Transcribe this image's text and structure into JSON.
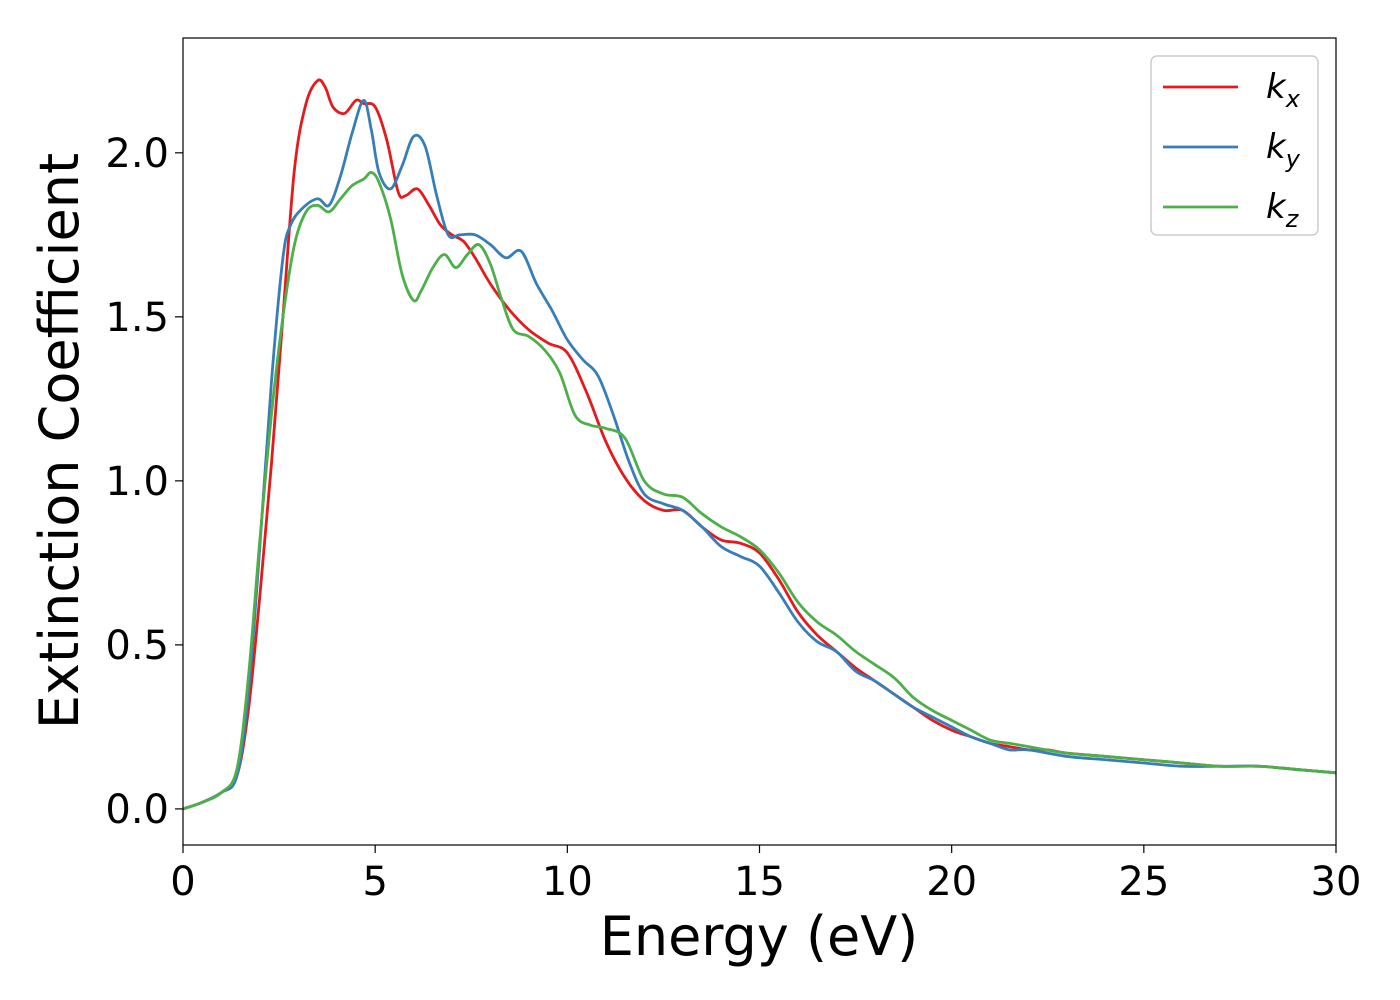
{
  "chart_data": {
    "type": "line",
    "title": "",
    "xlabel": "Energy (eV)",
    "ylabel": "Extinction Coefficient",
    "xlim": [
      0,
      30
    ],
    "ylim": [
      -0.11,
      2.35
    ],
    "xticks": [
      0,
      5,
      10,
      15,
      20,
      25,
      30
    ],
    "xtick_labels": [
      "0",
      "5",
      "10",
      "15",
      "20",
      "25",
      "30"
    ],
    "yticks": [
      0.0,
      0.5,
      1.0,
      1.5,
      2.0
    ],
    "ytick_labels": [
      "0.0",
      "0.5",
      "1.0",
      "1.5",
      "2.0"
    ],
    "grid": false,
    "legend_position": "top-right",
    "series": [
      {
        "name": "k_x",
        "label_main": "k",
        "label_sub": "x",
        "color": "#e41a1c",
        "x": [
          0,
          0.5,
          1.0,
          1.4,
          1.7,
          2.0,
          2.3,
          2.6,
          2.9,
          3.2,
          3.5,
          3.7,
          3.9,
          4.2,
          4.5,
          4.7,
          5.0,
          5.3,
          5.6,
          5.8,
          6.1,
          6.4,
          6.7,
          7.0,
          7.3,
          7.6,
          8.0,
          8.5,
          9.0,
          9.5,
          10.0,
          10.5,
          11.0,
          11.5,
          12.0,
          12.5,
          13.0,
          13.5,
          14.0,
          14.5,
          15.0,
          15.5,
          16.0,
          16.5,
          17.0,
          17.5,
          18.0,
          18.5,
          19.0,
          19.5,
          20.0,
          20.5,
          21.0,
          21.5,
          22.0,
          22.5,
          23.0,
          24.0,
          25.0,
          26.0,
          27.0,
          28.0,
          29.0,
          30.0
        ],
        "y": [
          0.0,
          0.02,
          0.05,
          0.1,
          0.3,
          0.65,
          1.05,
          1.5,
          1.95,
          2.15,
          2.22,
          2.2,
          2.14,
          2.12,
          2.16,
          2.15,
          2.14,
          2.04,
          1.88,
          1.87,
          1.89,
          1.84,
          1.78,
          1.75,
          1.73,
          1.68,
          1.6,
          1.52,
          1.46,
          1.42,
          1.39,
          1.27,
          1.12,
          1.01,
          0.94,
          0.91,
          0.91,
          0.86,
          0.82,
          0.81,
          0.78,
          0.7,
          0.6,
          0.53,
          0.48,
          0.43,
          0.39,
          0.35,
          0.31,
          0.27,
          0.24,
          0.22,
          0.2,
          0.19,
          0.18,
          0.18,
          0.17,
          0.16,
          0.15,
          0.14,
          0.13,
          0.13,
          0.12,
          0.11
        ]
      },
      {
        "name": "k_y",
        "label_main": "k",
        "label_sub": "y",
        "color": "#377eb8",
        "x": [
          0,
          0.5,
          1.0,
          1.4,
          1.7,
          2.0,
          2.3,
          2.6,
          2.8,
          3.1,
          3.5,
          3.8,
          4.1,
          4.4,
          4.7,
          4.9,
          5.1,
          5.4,
          5.7,
          6.0,
          6.3,
          6.6,
          6.9,
          7.2,
          7.6,
          8.0,
          8.4,
          8.8,
          9.2,
          9.6,
          10.0,
          10.4,
          10.8,
          11.2,
          11.6,
          12.0,
          12.5,
          13.0,
          13.5,
          14.0,
          14.5,
          15.0,
          15.5,
          16.0,
          16.5,
          17.0,
          17.5,
          18.0,
          18.5,
          19.0,
          19.5,
          20.0,
          20.5,
          21.0,
          21.5,
          22.0,
          23.0,
          24.0,
          25.0,
          26.0,
          27.0,
          28.0,
          29.0,
          30.0
        ],
        "y": [
          0.0,
          0.02,
          0.05,
          0.1,
          0.35,
          0.8,
          1.3,
          1.68,
          1.78,
          1.83,
          1.86,
          1.84,
          1.93,
          2.06,
          2.16,
          2.07,
          1.94,
          1.89,
          1.96,
          2.05,
          2.02,
          1.87,
          1.75,
          1.75,
          1.75,
          1.72,
          1.68,
          1.7,
          1.6,
          1.52,
          1.43,
          1.37,
          1.32,
          1.2,
          1.06,
          0.96,
          0.93,
          0.91,
          0.86,
          0.8,
          0.77,
          0.74,
          0.66,
          0.57,
          0.51,
          0.48,
          0.42,
          0.39,
          0.35,
          0.31,
          0.28,
          0.25,
          0.22,
          0.2,
          0.18,
          0.18,
          0.16,
          0.15,
          0.14,
          0.13,
          0.13,
          0.13,
          0.12,
          0.11
        ]
      },
      {
        "name": "k_z",
        "label_main": "k",
        "label_sub": "z",
        "color": "#4daf4a",
        "x": [
          0,
          0.5,
          1.0,
          1.4,
          1.7,
          2.0,
          2.3,
          2.6,
          2.9,
          3.2,
          3.5,
          3.8,
          4.1,
          4.4,
          4.7,
          4.9,
          5.1,
          5.4,
          5.7,
          6.0,
          6.2,
          6.5,
          6.8,
          7.1,
          7.4,
          7.7,
          8.0,
          8.3,
          8.6,
          9.0,
          9.4,
          9.8,
          10.2,
          10.6,
          11.0,
          11.5,
          12.0,
          12.5,
          13.0,
          13.5,
          14.0,
          14.5,
          15.0,
          15.5,
          16.0,
          16.5,
          17.0,
          17.5,
          18.0,
          18.5,
          19.0,
          19.5,
          20.0,
          20.5,
          21.0,
          21.5,
          22.0,
          23.0,
          24.0,
          25.0,
          26.0,
          27.0,
          28.0,
          29.0,
          30.0
        ],
        "y": [
          0.0,
          0.02,
          0.05,
          0.12,
          0.4,
          0.82,
          1.2,
          1.5,
          1.72,
          1.82,
          1.84,
          1.82,
          1.86,
          1.9,
          1.92,
          1.94,
          1.91,
          1.8,
          1.63,
          1.55,
          1.58,
          1.65,
          1.69,
          1.65,
          1.69,
          1.72,
          1.66,
          1.55,
          1.46,
          1.44,
          1.4,
          1.33,
          1.2,
          1.17,
          1.16,
          1.13,
          1.0,
          0.96,
          0.95,
          0.9,
          0.86,
          0.83,
          0.79,
          0.72,
          0.63,
          0.57,
          0.53,
          0.48,
          0.44,
          0.4,
          0.34,
          0.3,
          0.27,
          0.24,
          0.21,
          0.2,
          0.19,
          0.17,
          0.16,
          0.15,
          0.14,
          0.13,
          0.13,
          0.12,
          0.11
        ]
      }
    ]
  }
}
